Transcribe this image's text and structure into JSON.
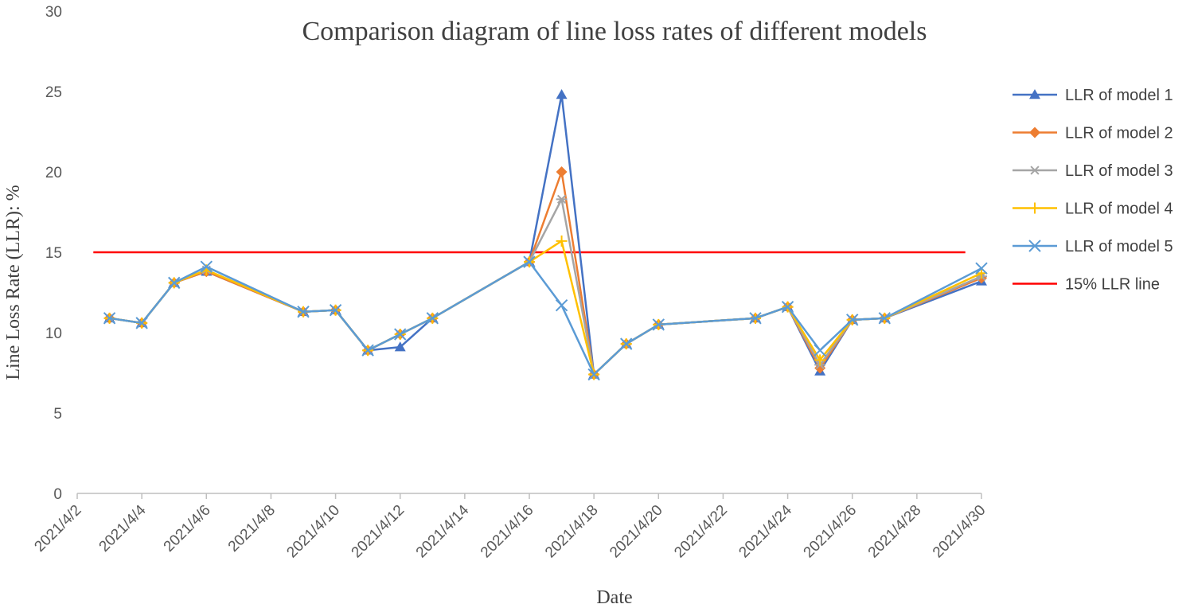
{
  "chart_data": {
    "type": "line",
    "title": "Comparison diagram of line loss rates of different models",
    "xlabel": "Date",
    "ylabel": "Line Loss Rate (LLR): %",
    "ylim": [
      0,
      30
    ],
    "yticks": [
      0,
      5,
      10,
      15,
      20,
      25,
      30
    ],
    "xlim": [
      2,
      30
    ],
    "xtick_days": [
      2,
      4,
      6,
      8,
      10,
      12,
      14,
      16,
      18,
      20,
      22,
      24,
      26,
      28,
      30
    ],
    "xtick_labels": [
      "2021/4/2",
      "2021/4/4",
      "2021/4/6",
      "2021/4/8",
      "2021/4/10",
      "2021/4/12",
      "2021/4/14",
      "2021/4/16",
      "2021/4/18",
      "2021/4/20",
      "2021/4/22",
      "2021/4/24",
      "2021/4/26",
      "2021/4/28",
      "2021/4/30"
    ],
    "x": [
      3,
      4,
      5,
      6,
      9,
      10,
      11,
      12,
      13,
      16,
      17,
      18,
      19,
      20,
      23,
      24,
      25,
      26,
      27,
      30
    ],
    "series": [
      {
        "name": "LLR of model 1",
        "color": "#4472C4",
        "marker": "triangle",
        "values": [
          10.9,
          10.6,
          13.1,
          13.8,
          11.3,
          11.4,
          8.9,
          9.1,
          10.9,
          14.4,
          24.8,
          7.4,
          9.3,
          10.5,
          10.9,
          11.6,
          7.6,
          10.8,
          10.9,
          13.2
        ]
      },
      {
        "name": "LLR of model 2",
        "color": "#ED7D31",
        "marker": "diamond",
        "values": [
          10.9,
          10.6,
          13.1,
          13.8,
          11.3,
          11.4,
          8.9,
          9.9,
          10.9,
          14.4,
          20.0,
          7.4,
          9.3,
          10.5,
          10.9,
          11.6,
          7.8,
          10.8,
          10.9,
          13.4
        ]
      },
      {
        "name": "LLR of model 3",
        "color": "#A5A5A5",
        "marker": "star",
        "values": [
          10.9,
          10.6,
          13.1,
          13.9,
          11.3,
          11.4,
          8.9,
          9.9,
          10.9,
          14.4,
          18.3,
          7.4,
          9.3,
          10.5,
          10.9,
          11.6,
          8.0,
          10.8,
          10.9,
          13.5
        ]
      },
      {
        "name": "LLR of model 4",
        "color": "#FFC000",
        "marker": "plus",
        "values": [
          10.9,
          10.6,
          13.1,
          13.9,
          11.3,
          11.4,
          8.9,
          9.9,
          10.9,
          14.4,
          15.7,
          7.4,
          9.3,
          10.5,
          10.9,
          11.6,
          8.3,
          10.8,
          10.9,
          13.7
        ]
      },
      {
        "name": "LLR of model 5",
        "color": "#5B9BD5",
        "marker": "x",
        "values": [
          10.9,
          10.6,
          13.1,
          14.1,
          11.3,
          11.4,
          8.9,
          9.9,
          10.9,
          14.4,
          11.7,
          7.4,
          9.3,
          10.5,
          10.9,
          11.6,
          8.9,
          10.8,
          10.9,
          14.0
        ]
      }
    ],
    "reference_line": {
      "name": "15% LLR line",
      "value": 15,
      "color": "#FF0000"
    },
    "legend": "right"
  }
}
